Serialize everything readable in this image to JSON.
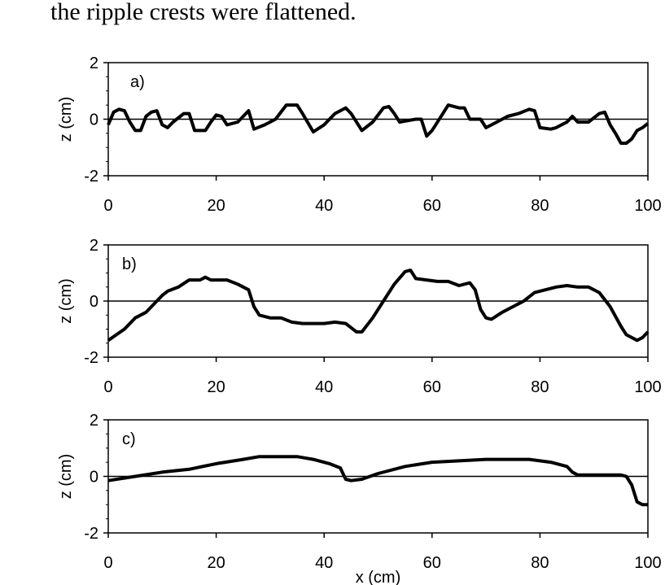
{
  "caption": "the ripple crests were flattened.",
  "chart_data": [
    {
      "type": "line",
      "label": "a)",
      "ylabel": "z (cm)",
      "xlim": [
        0,
        100
      ],
      "ylim": [
        -2,
        2
      ],
      "xticks": [
        0,
        20,
        40,
        60,
        80,
        100
      ],
      "yticks": [
        -2,
        0,
        2
      ],
      "reference_line": 0,
      "color": "#000000",
      "x": [
        0,
        1,
        2,
        3,
        4,
        5,
        6,
        7,
        8,
        9,
        10,
        11,
        12,
        14,
        15,
        16,
        18,
        19,
        20,
        21,
        22,
        24,
        26,
        27,
        29,
        31,
        33,
        35,
        36,
        38,
        40,
        42,
        44,
        45,
        47,
        49,
        51,
        52,
        53,
        54,
        57,
        58,
        59,
        60,
        62,
        63,
        65,
        66,
        67,
        69,
        70,
        72,
        74,
        76,
        78,
        79,
        80,
        82,
        83,
        84,
        85,
        86,
        87,
        89,
        91,
        92,
        93,
        94,
        95,
        96,
        97,
        98,
        99,
        100
      ],
      "values": [
        -0.2,
        0.25,
        0.35,
        0.3,
        -0.1,
        -0.4,
        -0.4,
        0.1,
        0.25,
        0.3,
        -0.2,
        -0.3,
        -0.1,
        0.2,
        0.2,
        -0.4,
        -0.4,
        -0.1,
        0.15,
        0.1,
        -0.2,
        -0.1,
        0.3,
        -0.35,
        -0.2,
        0.0,
        0.5,
        0.5,
        0.2,
        -0.45,
        -0.2,
        0.2,
        0.4,
        0.2,
        -0.4,
        -0.1,
        0.4,
        0.45,
        0.2,
        -0.1,
        0.0,
        0.0,
        -0.6,
        -0.4,
        0.2,
        0.5,
        0.4,
        0.4,
        0.0,
        0.0,
        -0.3,
        -0.1,
        0.1,
        0.2,
        0.35,
        0.3,
        -0.3,
        -0.35,
        -0.3,
        -0.2,
        -0.1,
        0.1,
        -0.1,
        -0.1,
        0.2,
        0.25,
        -0.2,
        -0.5,
        -0.85,
        -0.85,
        -0.7,
        -0.4,
        -0.3,
        -0.15
      ]
    },
    {
      "type": "line",
      "label": "b)",
      "ylabel": "z (cm)",
      "xlim": [
        0,
        100
      ],
      "ylim": [
        -2,
        2
      ],
      "xticks": [
        0,
        20,
        40,
        60,
        80,
        100
      ],
      "yticks": [
        -2,
        0,
        2
      ],
      "reference_line": 0,
      "color": "#000000",
      "x": [
        0,
        3,
        5,
        7,
        10,
        11,
        13,
        15,
        17,
        18,
        19,
        22,
        24,
        26,
        27,
        28,
        30,
        32,
        34,
        36,
        38,
        40,
        42,
        44,
        46,
        47,
        49,
        51,
        53,
        55,
        56,
        57,
        59,
        61,
        63,
        65,
        67,
        68,
        69,
        70,
        71,
        73,
        75,
        77,
        79,
        81,
        83,
        85,
        87,
        89,
        91,
        93,
        95,
        96,
        98,
        99,
        100
      ],
      "values": [
        -1.4,
        -1.0,
        -0.6,
        -0.4,
        0.2,
        0.35,
        0.5,
        0.75,
        0.75,
        0.85,
        0.75,
        0.75,
        0.6,
        0.4,
        -0.2,
        -0.5,
        -0.6,
        -0.6,
        -0.75,
        -0.8,
        -0.8,
        -0.8,
        -0.75,
        -0.8,
        -1.1,
        -1.1,
        -0.6,
        0.0,
        0.6,
        1.05,
        1.1,
        0.8,
        0.75,
        0.7,
        0.7,
        0.55,
        0.65,
        0.4,
        -0.3,
        -0.6,
        -0.65,
        -0.4,
        -0.2,
        0.0,
        0.3,
        0.4,
        0.5,
        0.55,
        0.5,
        0.5,
        0.3,
        -0.2,
        -0.9,
        -1.2,
        -1.4,
        -1.3,
        -1.1
      ]
    },
    {
      "type": "line",
      "label": "c)",
      "ylabel": "z (cm)",
      "xlabel": "x (cm)",
      "xlim": [
        0,
        100
      ],
      "ylim": [
        -2,
        2
      ],
      "xticks": [
        0,
        20,
        40,
        60,
        80,
        100
      ],
      "yticks": [
        -2,
        0,
        2
      ],
      "reference_line": 0,
      "color": "#000000",
      "x": [
        0,
        5,
        10,
        15,
        20,
        25,
        28,
        30,
        35,
        38,
        41,
        43,
        44,
        45,
        47,
        50,
        55,
        60,
        65,
        70,
        75,
        78,
        82,
        85,
        86,
        87,
        90,
        95,
        96,
        97,
        98,
        99,
        100
      ],
      "values": [
        -0.15,
        0.0,
        0.15,
        0.25,
        0.45,
        0.6,
        0.7,
        0.7,
        0.7,
        0.6,
        0.45,
        0.3,
        -0.1,
        -0.15,
        -0.1,
        0.1,
        0.35,
        0.5,
        0.55,
        0.6,
        0.6,
        0.6,
        0.5,
        0.35,
        0.15,
        0.05,
        0.05,
        0.05,
        0.0,
        -0.3,
        -0.9,
        -1.0,
        -1.0
      ]
    }
  ]
}
